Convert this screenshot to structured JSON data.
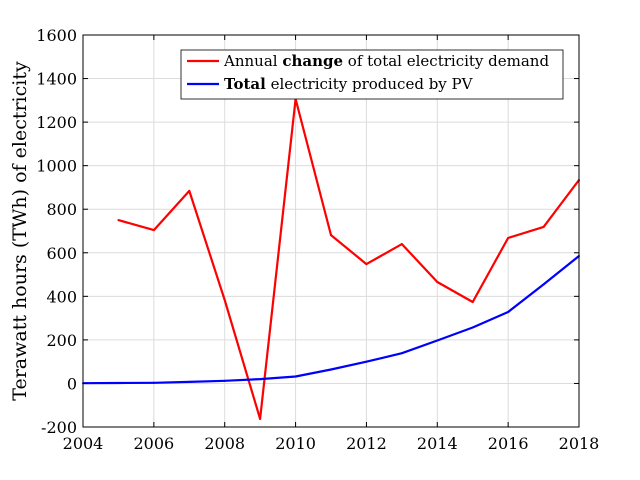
{
  "chart_data": {
    "type": "line",
    "title": "",
    "xlabel": "",
    "ylabel": "Terawatt hours (TWh) of electricity",
    "xlim": [
      2004,
      2018
    ],
    "ylim": [
      -200,
      1600
    ],
    "xticks": [
      2004,
      2006,
      2008,
      2010,
      2012,
      2014,
      2016,
      2018
    ],
    "yticks": [
      -200,
      0,
      200,
      400,
      600,
      800,
      1000,
      1200,
      1400,
      1600
    ],
    "grid": true,
    "legend_placement": "top-right",
    "series": [
      {
        "name": "Annual change of total electricity demand",
        "legend_plain_1": "Annual ",
        "legend_bold": "change",
        "legend_plain_2": " of total electricity demand",
        "color": "#ff0000",
        "x": [
          2005,
          2006,
          2007,
          2008,
          2009,
          2010,
          2011,
          2012,
          2013,
          2014,
          2015,
          2016,
          2017,
          2018
        ],
        "values": [
          750,
          704,
          884,
          383,
          -163,
          1306,
          681,
          548,
          640,
          466,
          374,
          668,
          719,
          934
        ]
      },
      {
        "name": "Total electricity produced by PV",
        "legend_plain_1": "",
        "legend_bold": "Total",
        "legend_plain_2": " electricity produced by PV",
        "color": "#0000ff",
        "x": [
          2004,
          2005,
          2006,
          2007,
          2008,
          2009,
          2010,
          2011,
          2012,
          2013,
          2014,
          2015,
          2016,
          2017,
          2018
        ],
        "values": [
          1,
          2,
          3,
          7,
          12,
          20,
          32,
          64,
          100,
          139,
          197,
          257,
          328,
          455,
          585
        ]
      }
    ]
  }
}
